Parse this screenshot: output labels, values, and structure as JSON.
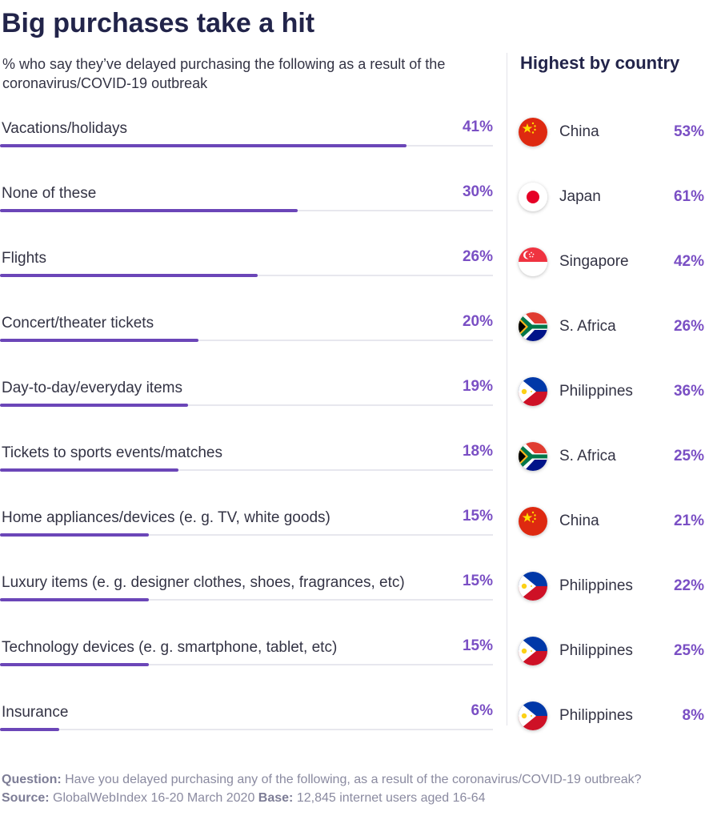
{
  "title": "Big purchases take a hit",
  "subtitle": "% who say they’ve delayed purchasing the following as a result of the coronavirus/COVID-19 outbreak",
  "right_header": "Highest by country",
  "chart_data": {
    "type": "bar",
    "orientation": "horizontal",
    "title": "Big purchases take a hit",
    "categories": [
      "Vacations/holidays",
      "None of these",
      "Flights",
      "Concert/theater tickets",
      "Day-to-day/everyday items",
      "Tickets to sports events/matches",
      "Home appliances/devices (e. g. TV, white goods)",
      "Luxury items (e. g. designer clothes, shoes, fragrances, etc)",
      "Technology devices (e. g. smartphone, tablet, etc)",
      "Insurance"
    ],
    "values": [
      41,
      30,
      26,
      20,
      19,
      18,
      15,
      15,
      15,
      6
    ],
    "value_labels": [
      "41%",
      "30%",
      "26%",
      "20%",
      "19%",
      "18%",
      "15%",
      "15%",
      "15%",
      "6%"
    ],
    "xlim": [
      0,
      50
    ],
    "bar_color": "#6b46b8",
    "label_color": "#7a4fc4",
    "highest_by_country": [
      {
        "country": "China",
        "flag": "china-flag-icon",
        "value": 53,
        "label": "53%"
      },
      {
        "country": "Japan",
        "flag": "japan-flag-icon",
        "value": 61,
        "label": "61%"
      },
      {
        "country": "Singapore",
        "flag": "singapore-flag-icon",
        "value": 42,
        "label": "42%"
      },
      {
        "country": "S. Africa",
        "flag": "south-africa-flag-icon",
        "value": 26,
        "label": "26%"
      },
      {
        "country": "Philippines",
        "flag": "philippines-flag-icon",
        "value": 36,
        "label": "36%"
      },
      {
        "country": "S. Africa",
        "flag": "south-africa-flag-icon",
        "value": 25,
        "label": "25%"
      },
      {
        "country": "China",
        "flag": "china-flag-icon",
        "value": 21,
        "label": "21%"
      },
      {
        "country": "Philippines",
        "flag": "philippines-flag-icon",
        "value": 22,
        "label": "22%"
      },
      {
        "country": "Philippines",
        "flag": "philippines-flag-icon",
        "value": 25,
        "label": "25%"
      },
      {
        "country": "Philippines",
        "flag": "philippines-flag-icon",
        "value": 8,
        "label": "8%"
      }
    ]
  },
  "footer": {
    "question_label": "Question:",
    "question_text": "Have you delayed purchasing any of the following, as a result of the coronavirus/COVID-19 outbreak?",
    "source_label": "Source:",
    "source_text": "GlobalWebIndex 16-20 March 2020",
    "base_label": "Base:",
    "base_text": "12,845 internet users aged 16-64"
  }
}
